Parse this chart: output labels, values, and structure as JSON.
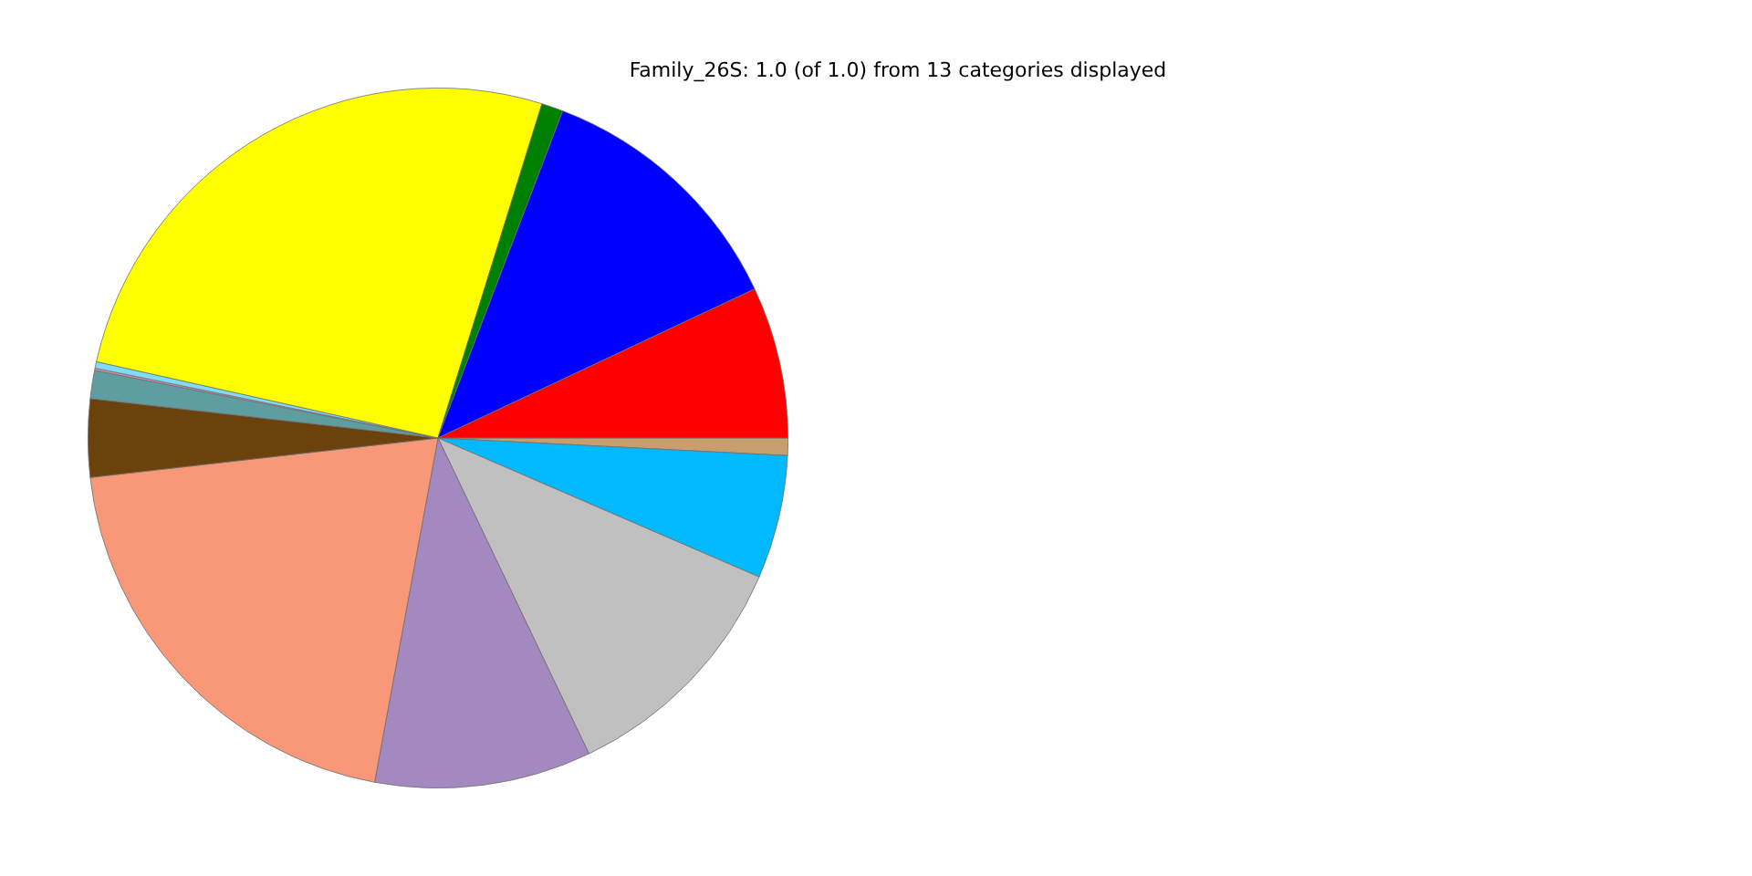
{
  "chart_data": {
    "type": "pie",
    "title": "Family_26S: 1.0 (of 1.0) from 13 categories displayed",
    "categories": [
      null,
      null,
      null,
      null,
      null,
      null,
      null,
      null,
      null,
      null,
      null,
      null,
      null
    ],
    "values": [
      7.0,
      12.2,
      1.0,
      26.3,
      0.3,
      0.1,
      1.3,
      3.6,
      20.3,
      10.0,
      11.4,
      5.7,
      0.8
    ],
    "colors": [
      "#ff0000",
      "#0000ff",
      "#008000",
      "#ffff00",
      "#7fdcf5",
      "#d98fb8",
      "#5f9ea0",
      "#6b420b",
      "#f89878",
      "#a389c0",
      "#c0c0c0",
      "#00b9ff",
      "#c89e6e"
    ],
    "legend": false
  }
}
